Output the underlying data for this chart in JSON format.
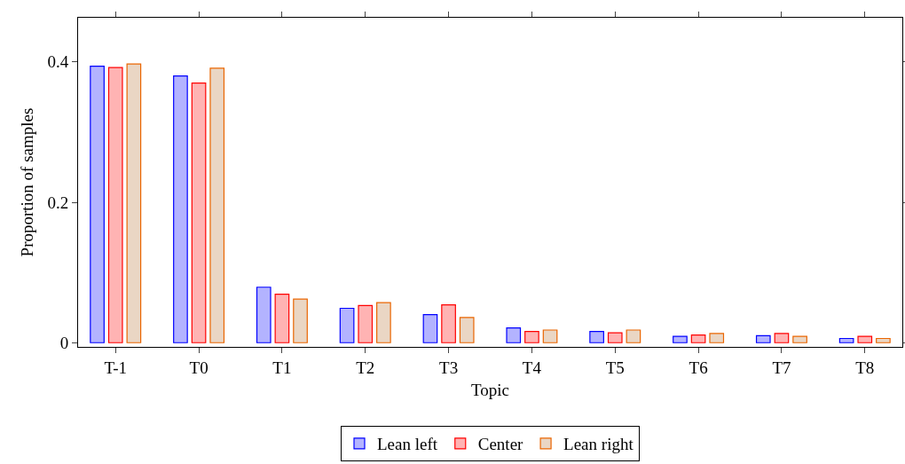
{
  "chart_data": {
    "type": "bar",
    "xlabel": "Topic",
    "ylabel": "Proportion of samples",
    "categories": [
      "T-1",
      "T0",
      "T1",
      "T2",
      "T3",
      "T4",
      "T5",
      "T6",
      "T7",
      "T8"
    ],
    "series": [
      {
        "name": "Lean left",
        "color": "#b3b3ff",
        "values": [
          0.394,
          0.38,
          0.079,
          0.049,
          0.04,
          0.021,
          0.016,
          0.009,
          0.01,
          0.006
        ]
      },
      {
        "name": "Center",
        "color": "#ffb3b3",
        "values": [
          0.392,
          0.37,
          0.069,
          0.053,
          0.054,
          0.016,
          0.014,
          0.011,
          0.013,
          0.009
        ]
      },
      {
        "name": "Lean right",
        "color": "#ead6c4",
        "values": [
          0.397,
          0.391,
          0.062,
          0.057,
          0.036,
          0.018,
          0.018,
          0.013,
          0.009,
          0.006
        ]
      }
    ],
    "ylim": [
      -0.006,
      0.463
    ],
    "yticks": [
      0,
      0.2,
      0.4
    ],
    "grid": false,
    "legend": "bottom"
  }
}
